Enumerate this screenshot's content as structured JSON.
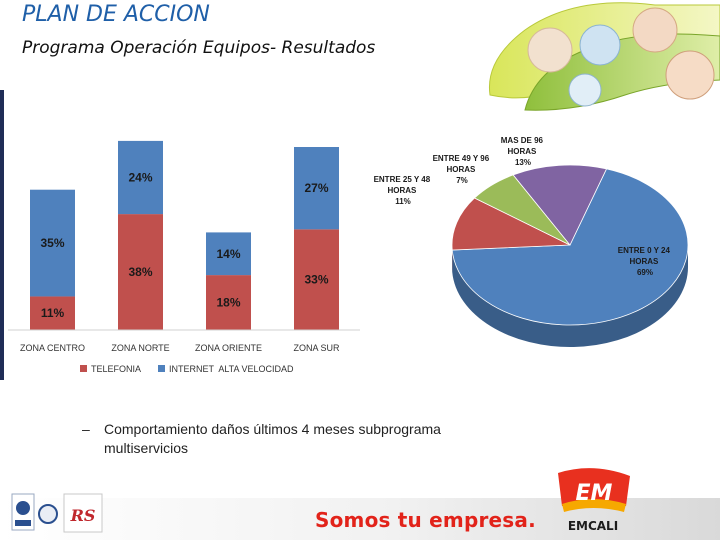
{
  "header": {
    "title": "PLAN DE ACCION",
    "subtitle": "Programa Operación Equipos- Resultados"
  },
  "colors": {
    "telefonia": "#c0504d",
    "internet": "#4f81bd",
    "title_blue": "#1f5fa8",
    "brand_red": "#e2231a"
  },
  "chart_data": [
    {
      "type": "bar",
      "stacked": true,
      "categories": [
        "ZONA CENTRO",
        "ZONA NORTE",
        "ZONA ORIENTE",
        "ZONA SUR"
      ],
      "series": [
        {
          "name": "TELEFONIA",
          "values": [
            11,
            38,
            18,
            33
          ],
          "labels": [
            "11%",
            "38%",
            "18%",
            "33%"
          ]
        },
        {
          "name": "INTERNET  ALTA VELOCIDAD",
          "values": [
            35,
            24,
            14,
            27
          ],
          "labels": [
            "35%",
            "24%",
            "14%",
            "27%"
          ]
        }
      ],
      "legend_position": "bottom",
      "grid": false
    },
    {
      "type": "pie",
      "style": "3d",
      "slices": [
        {
          "label": "ENTRE 0 Y 24 HORAS",
          "value": 69,
          "pct_label": "69%",
          "color": "#4f81bd"
        },
        {
          "label": "ENTRE 25 Y 48 HORAS",
          "value": 11,
          "pct_label": "11%",
          "color": "#c0504d"
        },
        {
          "label": "ENTRE 49 Y 96 HORAS",
          "value": 7,
          "pct_label": "7%",
          "color": "#9bbb59"
        },
        {
          "label": "MAS DE 96 HORAS",
          "value": 13,
          "pct_label": "13%",
          "color": "#8064a2"
        }
      ]
    }
  ],
  "note": {
    "dash": "–",
    "text": "Comportamiento daños últimos 4 meses subprograma multiservicios"
  },
  "footer": {
    "slogan": "Somos tu empresa.",
    "brand": "EMCALI",
    "brand_mark": "EM"
  }
}
